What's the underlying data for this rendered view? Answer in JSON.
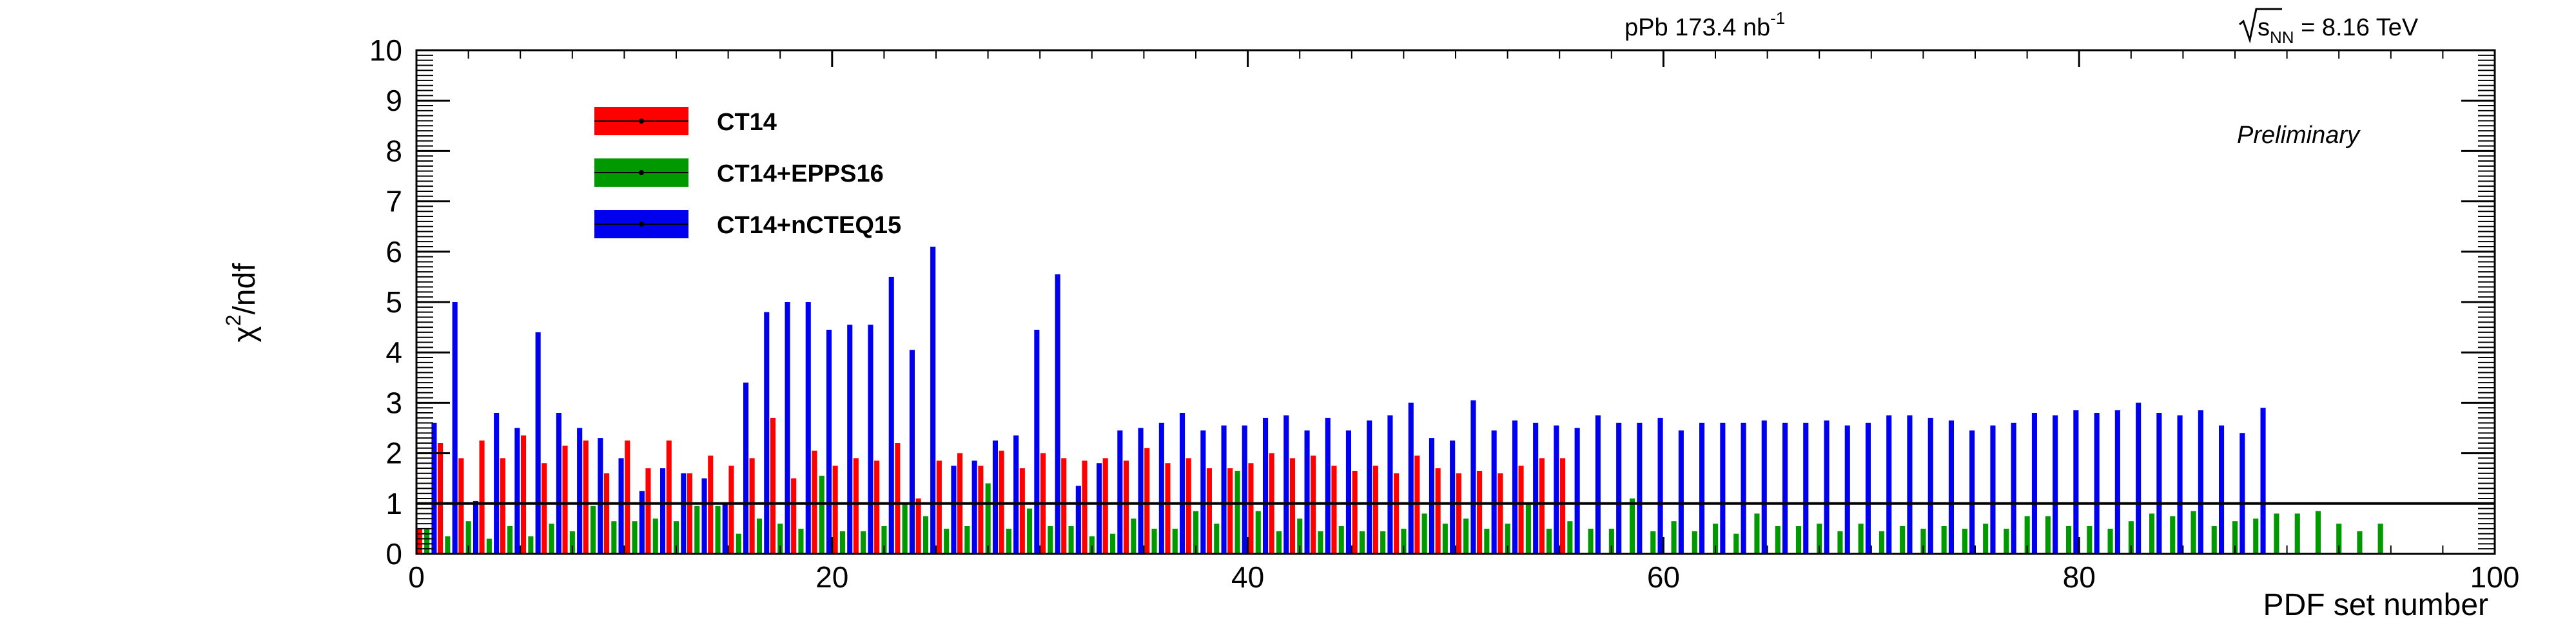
{
  "chart_data": {
    "type": "bar",
    "xlabel": "PDF set number",
    "ylabel": "χ²/ndf",
    "ylabel_main": "χ",
    "ylabel_sup": "2",
    "ylabel_rest": "/ndf",
    "xlim": [
      0,
      100
    ],
    "ylim": [
      0,
      10
    ],
    "x_ticks": [
      0,
      20,
      40,
      60,
      80,
      100
    ],
    "y_ticks": [
      0,
      1,
      2,
      3,
      4,
      5,
      6,
      7,
      8,
      9,
      10
    ],
    "reference_line_y": 1,
    "grid": false,
    "legend_position": "top-left",
    "annotations": {
      "lumi_main": "pPb 173.4 nb",
      "lumi_sup": "-1",
      "energy_main": "s",
      "energy_sub": "NN",
      "energy_rest": " = 8.16 TeV",
      "status": "Preliminary"
    },
    "series": [
      {
        "name": "CT14",
        "color": "#ff0000",
        "offset": -0.35,
        "values": [
          0.5,
          2.2,
          1.9,
          2.25,
          1.9,
          2.35,
          1.8,
          2.15,
          2.25,
          1.6,
          2.25,
          1.7,
          2.25,
          1.6,
          1.95,
          1.75,
          1.9,
          2.7,
          1.5,
          2.05,
          1.75,
          1.9,
          1.85,
          2.2,
          1.1,
          1.85,
          2.0,
          1.75,
          2.05,
          1.7,
          2.0,
          1.9,
          1.85,
          1.9,
          1.85,
          2.1,
          1.8,
          1.9,
          1.7,
          1.7,
          1.8,
          2.0,
          1.9,
          1.95,
          1.75,
          1.65,
          1.75,
          1.6,
          1.95,
          1.7,
          1.6,
          1.65,
          1.6,
          1.75,
          1.9,
          1.9
        ]
      },
      {
        "name": "CT14+EPPS16",
        "color": "#009900",
        "offset": 0.0,
        "values": [
          0.5,
          0.35,
          0.65,
          0.3,
          0.55,
          0.35,
          0.6,
          0.45,
          0.95,
          0.65,
          0.65,
          0.7,
          0.65,
          0.95,
          0.95,
          0.4,
          0.7,
          0.6,
          0.5,
          1.55,
          0.45,
          0.45,
          0.55,
          1.0,
          0.75,
          0.5,
          0.55,
          1.4,
          0.5,
          0.9,
          0.55,
          0.55,
          0.35,
          0.4,
          0.7,
          0.5,
          0.5,
          0.85,
          0.6,
          1.65,
          0.85,
          0.45,
          0.7,
          0.45,
          0.55,
          0.45,
          0.45,
          0.5,
          0.8,
          0.6,
          0.7,
          0.5,
          0.6,
          1.0,
          0.5,
          0.65,
          0.5,
          0.5,
          1.1,
          0.45,
          0.65,
          0.45,
          0.6,
          0.4,
          0.8,
          0.55,
          0.55,
          0.6,
          0.45,
          0.6,
          0.45,
          0.55,
          0.5,
          0.55,
          0.5,
          0.6,
          0.5,
          0.75,
          0.75,
          0.55,
          0.55,
          0.5,
          0.65,
          0.8,
          0.75,
          0.85,
          0.55,
          0.65,
          0.7,
          0.8,
          0.8,
          0.85,
          0.6,
          0.45,
          0.6
        ]
      },
      {
        "name": "CT14+nCTEQ15",
        "color": "#0000ee",
        "offset": 0.35,
        "values": [
          2.6,
          5.0,
          1.05,
          2.8,
          2.5,
          4.4,
          2.8,
          2.5,
          2.3,
          1.9,
          1.25,
          1.7,
          1.6,
          1.5,
          1.0,
          3.4,
          4.8,
          5.0,
          5.0,
          4.45,
          4.55,
          4.55,
          5.5,
          4.05,
          6.1,
          1.75,
          1.85,
          2.25,
          2.35,
          4.45,
          5.55,
          1.35,
          1.8,
          2.45,
          2.5,
          2.6,
          2.8,
          2.45,
          2.55,
          2.55,
          2.7,
          2.75,
          2.45,
          2.7,
          2.45,
          2.65,
          2.75,
          3.0,
          2.3,
          2.25,
          3.05,
          2.45,
          2.65,
          2.6,
          2.55,
          2.5,
          2.75,
          2.6,
          2.6,
          2.7,
          2.45,
          2.6,
          2.6,
          2.6,
          2.65,
          2.6,
          2.6,
          2.65,
          2.55,
          2.6,
          2.75,
          2.75,
          2.7,
          2.65,
          2.45,
          2.55,
          2.6,
          2.8,
          2.75,
          2.85,
          2.8,
          2.85,
          3.0,
          2.8,
          2.75,
          2.85,
          2.55,
          2.4,
          2.9
        ]
      }
    ]
  }
}
